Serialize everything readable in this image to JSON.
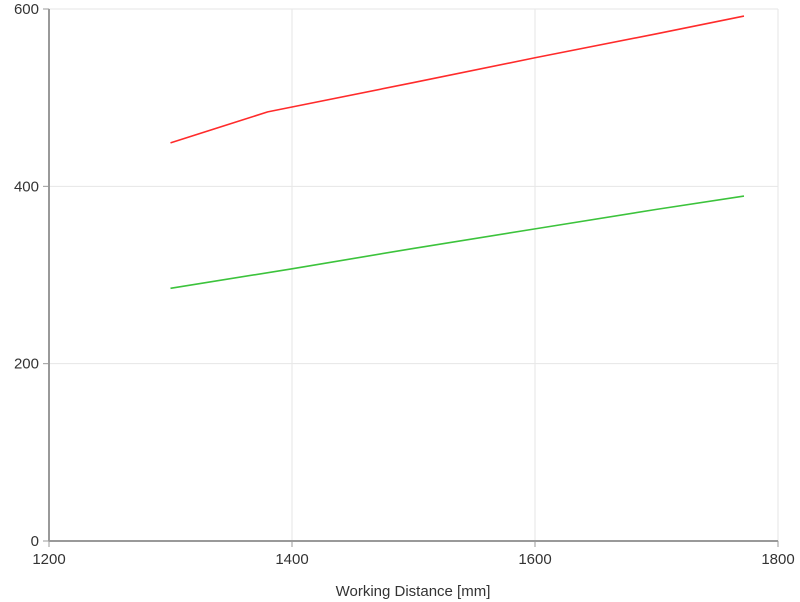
{
  "chart_data": {
    "type": "line",
    "title": "",
    "xlabel": "Working Distance [mm]",
    "ylabel": "",
    "xlim": [
      1200,
      1800
    ],
    "ylim": [
      0,
      600
    ],
    "x_ticks": [
      1200,
      1400,
      1600,
      1800
    ],
    "y_ticks": [
      0,
      200,
      400,
      600
    ],
    "grid": true,
    "series": [
      {
        "color": "#ff2b2b",
        "x": [
          1300,
          1380,
          1500,
          1600,
          1700,
          1772
        ],
        "y": [
          449,
          484,
          517,
          545,
          572,
          592
        ]
      },
      {
        "color": "#3cc33c",
        "x": [
          1300,
          1400,
          1500,
          1600,
          1700,
          1772
        ],
        "y": [
          285,
          307,
          330,
          352,
          374,
          389
        ]
      }
    ]
  }
}
